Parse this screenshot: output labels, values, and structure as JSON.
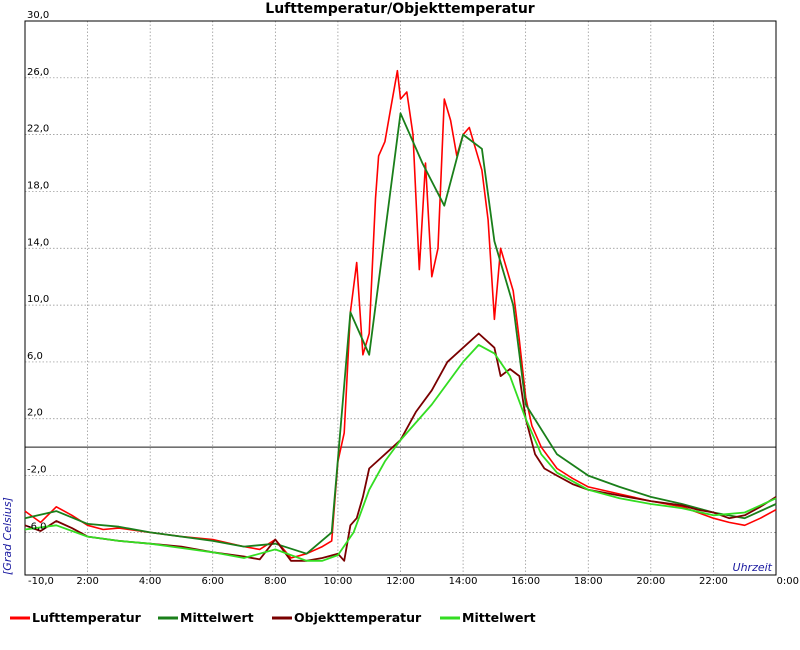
{
  "chart_data": {
    "type": "line",
    "title": "Lufttemperatur/Objekttemperatur",
    "xlabel": "Uhrzeit",
    "ylabel": "[Grad Celsius]",
    "xlim": [
      0,
      24
    ],
    "ylim": [
      -9,
      30
    ],
    "grid": true,
    "zero_line": 0,
    "legend_position": "bottom",
    "y_ticks": [
      {
        "value": 30,
        "label": "30,0"
      },
      {
        "value": 26,
        "label": "26,0"
      },
      {
        "value": 22,
        "label": "22,0"
      },
      {
        "value": 18,
        "label": "18,0"
      },
      {
        "value": 14,
        "label": "14,0"
      },
      {
        "value": 10,
        "label": "10,0"
      },
      {
        "value": 6,
        "label": "6,0"
      },
      {
        "value": 2,
        "label": "2,0"
      },
      {
        "value": -2,
        "label": "-2,0"
      },
      {
        "value": -6,
        "label": "-6,0"
      }
    ],
    "bottom_y_label": "-10,0",
    "x_ticks": [
      {
        "value": 2,
        "label": "2:00"
      },
      {
        "value": 4,
        "label": "4:00"
      },
      {
        "value": 6,
        "label": "6:00"
      },
      {
        "value": 8,
        "label": "8:00"
      },
      {
        "value": 10,
        "label": "10:00"
      },
      {
        "value": 12,
        "label": "12:00"
      },
      {
        "value": 14,
        "label": "14:00"
      },
      {
        "value": 16,
        "label": "16:00"
      },
      {
        "value": 18,
        "label": "18:00"
      },
      {
        "value": 20,
        "label": "20:00"
      },
      {
        "value": 22,
        "label": "22:00"
      },
      {
        "value": 24,
        "label": "0:00"
      }
    ],
    "series": [
      {
        "name": "Lufttemperatur",
        "color": "#ff0000",
        "x": [
          0,
          0.5,
          1,
          1.5,
          2,
          2.5,
          3,
          4,
          5,
          6,
          7,
          7.5,
          8,
          8.5,
          9,
          9.5,
          9.8,
          10,
          10.2,
          10.4,
          10.6,
          10.8,
          11,
          11.2,
          11.3,
          11.5,
          11.7,
          11.9,
          12,
          12.2,
          12.4,
          12.6,
          12.8,
          13,
          13.2,
          13.4,
          13.6,
          13.8,
          14,
          14.2,
          14.4,
          14.6,
          14.8,
          15,
          15.2,
          15.4,
          15.6,
          15.8,
          16,
          16.2,
          16.5,
          17,
          17.5,
          18,
          19,
          20,
          21,
          21.5,
          22,
          22.5,
          23,
          23.5,
          24
        ],
        "y": [
          -4.5,
          -5.3,
          -4.2,
          -4.8,
          -5.5,
          -5.8,
          -5.7,
          -6.0,
          -6.3,
          -6.5,
          -7.0,
          -7.2,
          -6.5,
          -7.8,
          -7.5,
          -7.0,
          -6.6,
          -1.0,
          1.0,
          9.5,
          13.0,
          6.5,
          8.0,
          17.5,
          20.5,
          21.5,
          24.0,
          26.5,
          24.5,
          25.0,
          22.0,
          12.5,
          20.0,
          12.0,
          14.0,
          24.5,
          23.0,
          20.5,
          22.0,
          22.5,
          21.0,
          19.5,
          16.0,
          9.0,
          14.0,
          12.5,
          11.0,
          7.5,
          3.5,
          1.5,
          0.0,
          -1.5,
          -2.2,
          -2.8,
          -3.3,
          -3.8,
          -4.2,
          -4.6,
          -5.0,
          -5.3,
          -5.5,
          -5.0,
          -4.4
        ]
      },
      {
        "name": "Mittelwert",
        "color": "#1a7f1a",
        "x": [
          0,
          1,
          2,
          3,
          4,
          5,
          6,
          7,
          8,
          9,
          9.8,
          10.4,
          11,
          12,
          12.7,
          13.4,
          14,
          14.6,
          15,
          15.6,
          16,
          17,
          18,
          19,
          20,
          21,
          22,
          23,
          24
        ],
        "y": [
          -5.0,
          -4.5,
          -5.4,
          -5.6,
          -6.0,
          -6.3,
          -6.6,
          -7.0,
          -6.8,
          -7.5,
          -6.0,
          9.5,
          6.5,
          23.5,
          20.0,
          17.0,
          22.0,
          21.0,
          14.5,
          10.0,
          3.0,
          -0.5,
          -2.0,
          -2.8,
          -3.5,
          -4.0,
          -4.6,
          -5.0,
          -4.0
        ]
      },
      {
        "name": "Objekttemperatur",
        "color": "#7a0000",
        "x": [
          0,
          0.5,
          1,
          1.5,
          2,
          3,
          4,
          5,
          6,
          7,
          7.5,
          8,
          8.5,
          9,
          9.5,
          10,
          10.2,
          10.4,
          10.6,
          10.8,
          11,
          11.5,
          12,
          12.5,
          13,
          13.5,
          14,
          14.5,
          15,
          15.2,
          15.5,
          15.8,
          16,
          16.3,
          16.6,
          17,
          17.5,
          18,
          19,
          20,
          21,
          21.5,
          22,
          22.5,
          23,
          23.5,
          24
        ],
        "y": [
          -5.5,
          -5.9,
          -5.2,
          -5.7,
          -6.3,
          -6.6,
          -6.8,
          -7.0,
          -7.4,
          -7.7,
          -7.9,
          -6.5,
          -8.0,
          -8.0,
          -7.8,
          -7.5,
          -8.0,
          -5.5,
          -5.0,
          -3.5,
          -1.5,
          -0.5,
          0.5,
          2.5,
          4.0,
          6.0,
          7.0,
          8.0,
          7.0,
          5.0,
          5.5,
          5.0,
          2.0,
          -0.5,
          -1.5,
          -2.0,
          -2.6,
          -3.0,
          -3.4,
          -3.8,
          -4.1,
          -4.4,
          -4.6,
          -5.0,
          -4.8,
          -4.2,
          -3.5
        ]
      },
      {
        "name": "Mittelwert",
        "color": "#33dd22",
        "x": [
          0,
          1,
          2,
          3,
          4,
          5,
          6,
          7,
          8,
          9,
          9.5,
          10,
          10.5,
          11,
          11.5,
          12,
          13,
          14,
          14.5,
          15,
          15.5,
          16,
          16.5,
          17,
          18,
          19,
          20,
          21,
          22,
          23,
          24
        ],
        "y": [
          -5.8,
          -5.5,
          -6.3,
          -6.6,
          -6.8,
          -7.1,
          -7.4,
          -7.8,
          -7.2,
          -8.0,
          -8.0,
          -7.6,
          -6.0,
          -3.0,
          -1.0,
          0.5,
          3.0,
          6.0,
          7.2,
          6.6,
          5.0,
          2.0,
          -0.5,
          -1.8,
          -3.0,
          -3.6,
          -4.0,
          -4.3,
          -4.8,
          -4.6,
          -3.6
        ]
      }
    ]
  }
}
